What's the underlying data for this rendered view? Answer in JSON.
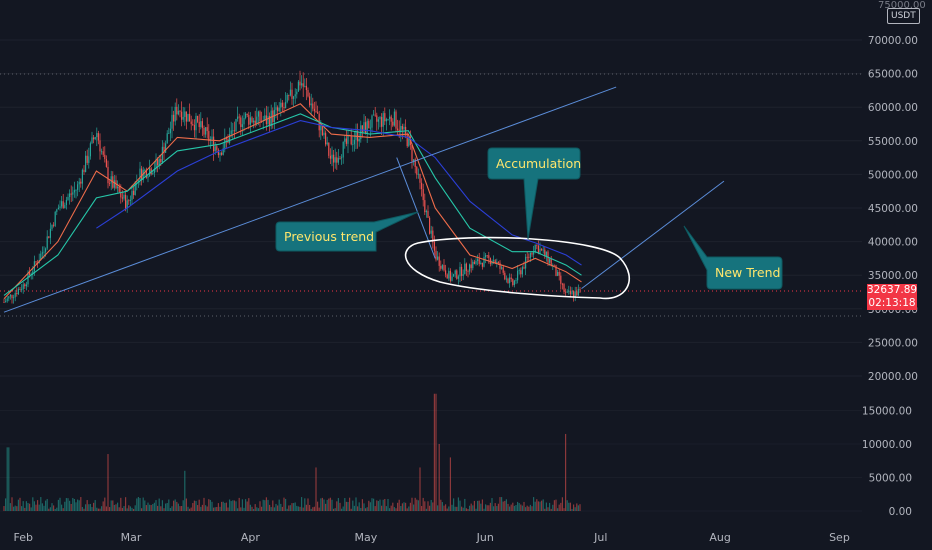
{
  "currency_badge": "USDT",
  "top_price_label": "75000.00",
  "last_price": {
    "value": "32637.89",
    "countdown": "02:13:18"
  },
  "colors": {
    "background": "#131722",
    "up": "#26a69a",
    "down": "#ef5350",
    "ma_fast": "#ef6c4a",
    "ma_mid": "#26c6a8",
    "ma_slow": "#2b3fd6",
    "trendline": "#5b8dd9",
    "callout_bg": "#16737d",
    "callout_text": "#ffe66d"
  },
  "annotations": [
    {
      "text": "Previous trend"
    },
    {
      "text": "Accumulation"
    },
    {
      "text": "New Trend"
    }
  ],
  "chart_data": {
    "type": "candlestick",
    "x_axis_ticks": [
      "Feb",
      "Mar",
      "Apr",
      "May",
      "Jun",
      "Jul",
      "Aug",
      "Sep"
    ],
    "price_axis_ticks": [
      70000,
      65000,
      60000,
      55000,
      50000,
      45000,
      40000,
      35000,
      30000,
      25000,
      20000
    ],
    "volume_axis_ticks": [
      15000,
      10000,
      5000,
      0
    ],
    "ylim": [
      15000,
      75000
    ],
    "reference_lines": [
      65000,
      29500
    ],
    "price_path": [
      {
        "d": "2021-01-27",
        "p": 31000
      },
      {
        "d": "2021-02-01",
        "p": 33500
      },
      {
        "d": "2021-02-06",
        "p": 38500
      },
      {
        "d": "2021-02-10",
        "p": 45000
      },
      {
        "d": "2021-02-15",
        "p": 48000
      },
      {
        "d": "2021-02-20",
        "p": 56500
      },
      {
        "d": "2021-02-23",
        "p": 49500
      },
      {
        "d": "2021-02-28",
        "p": 45500
      },
      {
        "d": "2021-03-03",
        "p": 50000
      },
      {
        "d": "2021-03-08",
        "p": 51500
      },
      {
        "d": "2021-03-13",
        "p": 60000
      },
      {
        "d": "2021-03-18",
        "p": 57500
      },
      {
        "d": "2021-03-24",
        "p": 53500
      },
      {
        "d": "2021-03-30",
        "p": 58500
      },
      {
        "d": "2021-04-05",
        "p": 58000
      },
      {
        "d": "2021-04-10",
        "p": 60000
      },
      {
        "d": "2021-04-14",
        "p": 64000
      },
      {
        "d": "2021-04-18",
        "p": 59000
      },
      {
        "d": "2021-04-22",
        "p": 52000
      },
      {
        "d": "2021-04-26",
        "p": 54500
      },
      {
        "d": "2021-05-02",
        "p": 57500
      },
      {
        "d": "2021-05-08",
        "p": 58500
      },
      {
        "d": "2021-05-12",
        "p": 55000
      },
      {
        "d": "2021-05-16",
        "p": 46000
      },
      {
        "d": "2021-05-19",
        "p": 38000
      },
      {
        "d": "2021-05-23",
        "p": 34500
      },
      {
        "d": "2021-05-28",
        "p": 36500
      },
      {
        "d": "2021-06-03",
        "p": 37500
      },
      {
        "d": "2021-06-08",
        "p": 33500
      },
      {
        "d": "2021-06-14",
        "p": 39500
      },
      {
        "d": "2021-06-18",
        "p": 37000
      },
      {
        "d": "2021-06-22",
        "p": 32000
      },
      {
        "d": "2021-06-26",
        "p": 32600
      }
    ],
    "moving_averages": [
      {
        "name": "fast",
        "color": "#ef6c4a",
        "values": [
          {
            "d": "2021-01-27",
            "p": 31500
          },
          {
            "d": "2021-02-10",
            "p": 40000
          },
          {
            "d": "2021-02-20",
            "p": 50500
          },
          {
            "d": "2021-02-28",
            "p": 47500
          },
          {
            "d": "2021-03-13",
            "p": 55500
          },
          {
            "d": "2021-03-24",
            "p": 55000
          },
          {
            "d": "2021-04-14",
            "p": 60500
          },
          {
            "d": "2021-04-22",
            "p": 56000
          },
          {
            "d": "2021-05-02",
            "p": 55500
          },
          {
            "d": "2021-05-12",
            "p": 56000
          },
          {
            "d": "2021-05-19",
            "p": 45000
          },
          {
            "d": "2021-05-28",
            "p": 38000
          },
          {
            "d": "2021-06-08",
            "p": 36000
          },
          {
            "d": "2021-06-14",
            "p": 37500
          },
          {
            "d": "2021-06-22",
            "p": 35500
          },
          {
            "d": "2021-06-26",
            "p": 34000
          }
        ]
      },
      {
        "name": "mid",
        "color": "#26c6a8",
        "values": [
          {
            "d": "2021-01-27",
            "p": 32000
          },
          {
            "d": "2021-02-10",
            "p": 38000
          },
          {
            "d": "2021-02-20",
            "p": 46500
          },
          {
            "d": "2021-02-28",
            "p": 47500
          },
          {
            "d": "2021-03-13",
            "p": 53500
          },
          {
            "d": "2021-03-24",
            "p": 54500
          },
          {
            "d": "2021-04-14",
            "p": 59000
          },
          {
            "d": "2021-04-22",
            "p": 57000
          },
          {
            "d": "2021-05-02",
            "p": 56000
          },
          {
            "d": "2021-05-12",
            "p": 56500
          },
          {
            "d": "2021-05-19",
            "p": 49500
          },
          {
            "d": "2021-05-28",
            "p": 42000
          },
          {
            "d": "2021-06-08",
            "p": 38500
          },
          {
            "d": "2021-06-14",
            "p": 38500
          },
          {
            "d": "2021-06-22",
            "p": 36500
          },
          {
            "d": "2021-06-26",
            "p": 35000
          }
        ]
      },
      {
        "name": "slow",
        "color": "#2b3fd6",
        "values": [
          {
            "d": "2021-02-20",
            "p": 42000
          },
          {
            "d": "2021-02-28",
            "p": 45000
          },
          {
            "d": "2021-03-13",
            "p": 50500
          },
          {
            "d": "2021-03-24",
            "p": 53500
          },
          {
            "d": "2021-04-14",
            "p": 58000
          },
          {
            "d": "2021-04-22",
            "p": 57000
          },
          {
            "d": "2021-05-02",
            "p": 56500
          },
          {
            "d": "2021-05-12",
            "p": 55500
          },
          {
            "d": "2021-05-19",
            "p": 52500
          },
          {
            "d": "2021-05-28",
            "p": 46000
          },
          {
            "d": "2021-06-08",
            "p": 41000
          },
          {
            "d": "2021-06-14",
            "p": 39800
          },
          {
            "d": "2021-06-22",
            "p": 38000
          },
          {
            "d": "2021-06-26",
            "p": 36500
          }
        ]
      }
    ],
    "trendlines": [
      {
        "name": "rising-support",
        "from": {
          "d": "2021-01-27",
          "p": 29500
        },
        "to": {
          "d": "2021-07-05",
          "p": 63000
        }
      },
      {
        "name": "breakdown",
        "from": {
          "d": "2021-05-09",
          "p": 52500
        },
        "to": {
          "d": "2021-05-19",
          "p": 37500
        }
      },
      {
        "name": "new-trend",
        "from": {
          "d": "2021-06-26",
          "p": 33000
        },
        "to": {
          "d": "2021-08-02",
          "p": 49000
        }
      }
    ],
    "volume_spikes": [
      {
        "d": "2021-05-19",
        "v": 17500
      },
      {
        "d": "2021-05-20",
        "v": 10000
      },
      {
        "d": "2021-05-23",
        "v": 8000
      },
      {
        "d": "2021-05-15",
        "v": 6500
      },
      {
        "d": "2021-06-22",
        "v": 11500
      },
      {
        "d": "2021-02-23",
        "v": 8500
      },
      {
        "d": "2021-03-15",
        "v": 6000
      },
      {
        "d": "2021-04-18",
        "v": 6500
      },
      {
        "d": "2021-01-28",
        "v": 9500
      }
    ]
  }
}
